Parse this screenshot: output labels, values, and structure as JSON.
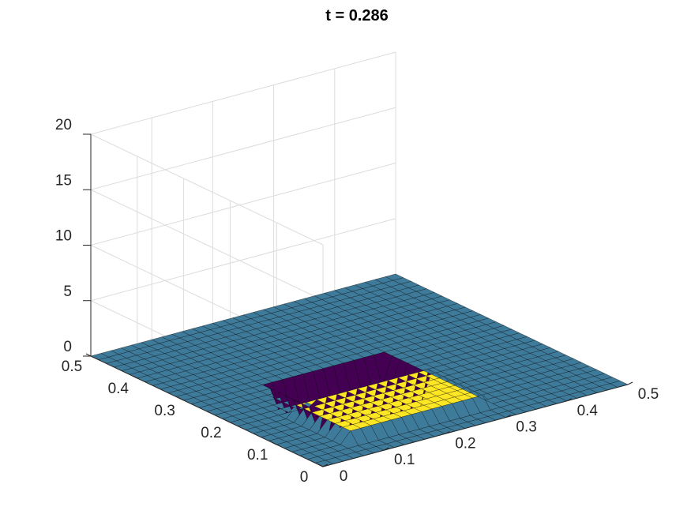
{
  "chart_data": {
    "type": "surface",
    "title": "t = 0.286",
    "xlabel": "",
    "ylabel": "",
    "zlabel": "",
    "xlim": [
      0,
      0.5
    ],
    "ylim": [
      0,
      0.5
    ],
    "zlim": [
      0,
      20
    ],
    "x_ticks": [
      "0",
      "0.1",
      "0.2",
      "0.3",
      "0.4",
      "0.5"
    ],
    "y_ticks": [
      "0",
      "0.1",
      "0.2",
      "0.3",
      "0.4",
      "0.5"
    ],
    "z_ticks": [
      "0",
      "5",
      "10",
      "15",
      "20"
    ],
    "grid": true,
    "colormap": "viridis",
    "mesh_resolution": 30,
    "base_value": 0,
    "regions": [
      {
        "name": "trough",
        "value": -2.6,
        "x_range": [
          0.13,
          0.3
        ],
        "y_range": [
          0.17,
          0.27
        ],
        "color": "#440154"
      },
      {
        "name": "plateau",
        "value": 1.0,
        "x_range": [
          0.07,
          0.3
        ],
        "y_range": [
          0.05,
          0.17
        ],
        "color": "#fde725"
      }
    ],
    "base_color": "#3e7a9a"
  }
}
